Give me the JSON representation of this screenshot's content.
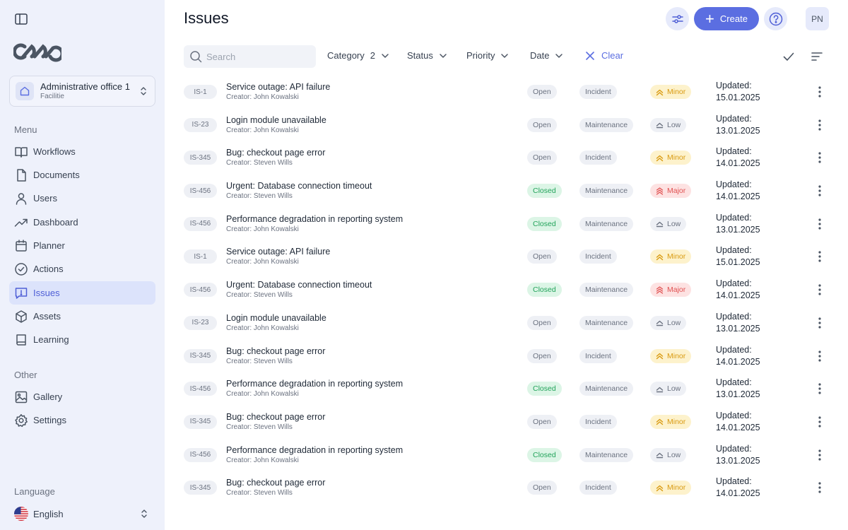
{
  "workspace": {
    "name": "Administrative office 1",
    "type": "Facilitie"
  },
  "sidebar": {
    "menu_label": "Menu",
    "items": [
      {
        "label": "Workflows",
        "icon": "book-open-icon"
      },
      {
        "label": "Documents",
        "icon": "document-icon"
      },
      {
        "label": "Users",
        "icon": "user-icon"
      },
      {
        "label": "Dashboard",
        "icon": "trending-up-icon"
      },
      {
        "label": "Planner",
        "icon": "calendar-icon"
      },
      {
        "label": "Actions",
        "icon": "check-circle-icon"
      },
      {
        "label": "Issues",
        "icon": "alert-message-icon",
        "active": true
      },
      {
        "label": "Assets",
        "icon": "cube-icon"
      },
      {
        "label": "Learning",
        "icon": "book-icon"
      }
    ],
    "other_label": "Other",
    "other_items": [
      {
        "label": "Gallery",
        "icon": "image-icon"
      },
      {
        "label": "Settings",
        "icon": "gear-icon"
      }
    ],
    "language_label": "Language",
    "language": "English"
  },
  "header": {
    "title": "Issues",
    "create_label": "Create",
    "avatar_initials": "PN"
  },
  "toolbar": {
    "search_placeholder": "Search",
    "filters": [
      {
        "label": "Category",
        "count": "2"
      },
      {
        "label": "Status"
      },
      {
        "label": "Priority"
      },
      {
        "label": "Date"
      }
    ],
    "clear_label": "Clear"
  },
  "issues": [
    {
      "id": "IS-1",
      "title": "Service outage: API failure",
      "creator": "Creator: John Kowalski",
      "status": "Open",
      "category": "Incident",
      "priority": "Minor",
      "updated_label": "Updated:",
      "updated_date": "15.01.2025"
    },
    {
      "id": "IS-23",
      "title": "Login module unavailable",
      "creator": "Creator: John Kowalski",
      "status": "Open",
      "category": "Maintenance",
      "priority": "Low",
      "updated_label": "Updated:",
      "updated_date": "13.01.2025"
    },
    {
      "id": "IS-345",
      "title": "Bug: checkout page error",
      "creator": "Creator: Steven Wills",
      "status": "Open",
      "category": "Incident",
      "priority": "Minor",
      "updated_label": "Updated:",
      "updated_date": "14.01.2025"
    },
    {
      "id": "IS-456",
      "title": "Urgent: Database connection timeout",
      "creator": "Creator: Steven Wills",
      "status": "Closed",
      "category": "Maintenance",
      "priority": "Major",
      "updated_label": "Updated:",
      "updated_date": "14.01.2025"
    },
    {
      "id": "IS-456",
      "title": "Performance degradation in reporting system",
      "creator": "Creator: John Kowalski",
      "status": "Closed",
      "category": "Maintenance",
      "priority": "Low",
      "updated_label": "Updated:",
      "updated_date": "13.01.2025"
    },
    {
      "id": "IS-1",
      "title": "Service outage: API failure",
      "creator": "Creator: John Kowalski",
      "status": "Open",
      "category": "Incident",
      "priority": "Minor",
      "updated_label": "Updated:",
      "updated_date": "15.01.2025"
    },
    {
      "id": "IS-456",
      "title": "Urgent: Database connection timeout",
      "creator": "Creator: Steven Wills",
      "status": "Closed",
      "category": "Maintenance",
      "priority": "Major",
      "updated_label": "Updated:",
      "updated_date": "14.01.2025"
    },
    {
      "id": "IS-23",
      "title": "Login module unavailable",
      "creator": "Creator: John Kowalski",
      "status": "Open",
      "category": "Maintenance",
      "priority": "Low",
      "updated_label": "Updated:",
      "updated_date": "13.01.2025"
    },
    {
      "id": "IS-345",
      "title": "Bug: checkout page error",
      "creator": "Creator: Steven Wills",
      "status": "Open",
      "category": "Incident",
      "priority": "Minor",
      "updated_label": "Updated:",
      "updated_date": "14.01.2025"
    },
    {
      "id": "IS-456",
      "title": "Performance degradation in reporting system",
      "creator": "Creator: John Kowalski",
      "status": "Closed",
      "category": "Maintenance",
      "priority": "Low",
      "updated_label": "Updated:",
      "updated_date": "13.01.2025"
    },
    {
      "id": "IS-345",
      "title": "Bug: checkout page error",
      "creator": "Creator: Steven Wills",
      "status": "Open",
      "category": "Incident",
      "priority": "Minor",
      "updated_label": "Updated:",
      "updated_date": "14.01.2025"
    },
    {
      "id": "IS-456",
      "title": "Performance degradation in reporting system",
      "creator": "Creator: John Kowalski",
      "status": "Closed",
      "category": "Maintenance",
      "priority": "Low",
      "updated_label": "Updated:",
      "updated_date": "13.01.2025"
    },
    {
      "id": "IS-345",
      "title": "Bug: checkout page error",
      "creator": "Creator: Steven Wills",
      "status": "Open",
      "category": "Incident",
      "priority": "Minor",
      "updated_label": "Updated:",
      "updated_date": "14.01.2025"
    }
  ],
  "colors": {
    "accent": "#5b6ee1",
    "sidebar_bg": "#eef1fb",
    "active_nav_bg": "#dce3fb",
    "closed_green": "#22a35a",
    "minor_amber": "#d99a10",
    "major_red": "#e05252"
  }
}
